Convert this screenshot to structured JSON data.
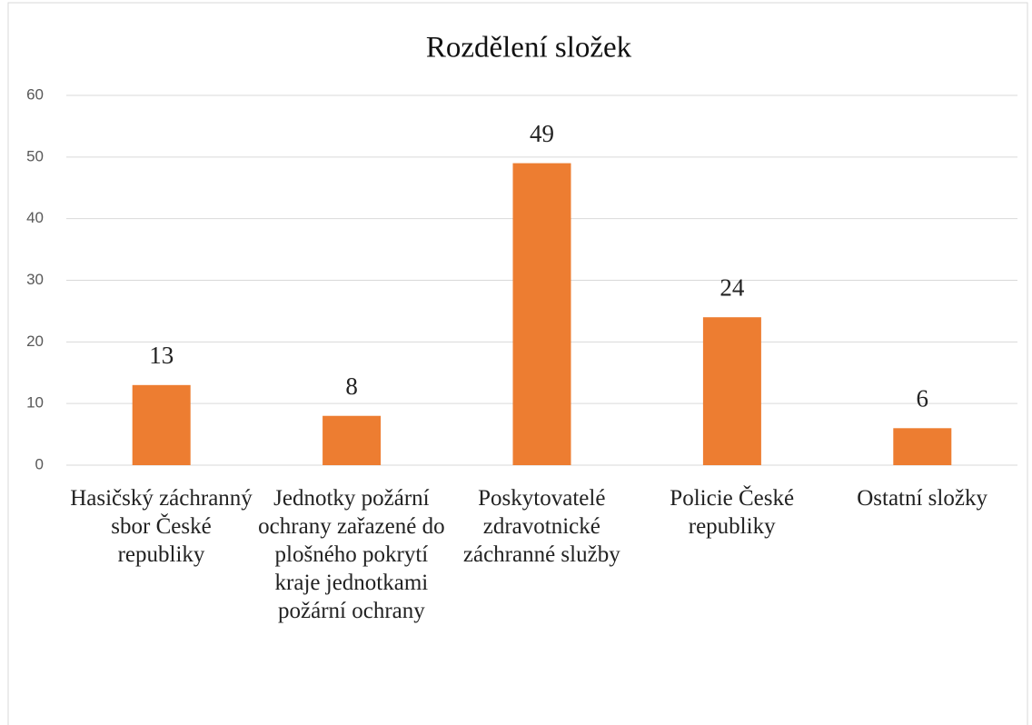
{
  "chart_data": {
    "type": "bar",
    "title": "Rozdělení složek",
    "categories": [
      "Hasičský záchranný sbor České republiky",
      "Jednotky požární ochrany zařazené do plošného pokrytí kraje jednotkami požární ochrany",
      "Poskytovatelé zdravotnické záchranné služby",
      "Policie České republiky",
      "Ostatní složky"
    ],
    "values": [
      13,
      8,
      49,
      24,
      6
    ],
    "color": "#ed7d31",
    "ylim": [
      0,
      60
    ],
    "yticks": [
      0,
      10,
      20,
      30,
      40,
      50,
      60
    ],
    "grid": true
  }
}
